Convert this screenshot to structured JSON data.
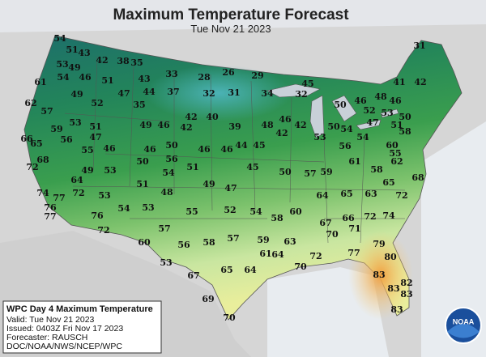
{
  "title": "Maximum Temperature Forecast",
  "subtitle": "Tue Nov 21 2023",
  "info_box": {
    "heading": "WPC Day 4 Maximum Temperature",
    "lines": [
      "Valid: Tue Nov 21 2023",
      "Issued: 0403Z Fri Nov 17 2023",
      "Forecaster: RAUSCH",
      "DOC/NOAA/NWS/NCEP/WPC"
    ]
  },
  "logo": "NOAA",
  "temperatures": [
    54,
    51,
    43,
    42,
    38,
    35,
    31,
    53,
    49,
    33,
    28,
    26,
    29,
    43,
    61,
    54,
    46,
    51,
    41,
    42,
    62,
    57,
    49,
    52,
    47,
    44,
    37,
    32,
    31,
    34,
    32,
    45,
    35,
    42,
    40,
    59,
    53,
    51,
    49,
    46,
    42,
    39,
    48,
    42,
    46,
    42,
    50,
    54,
    50,
    46,
    48,
    46,
    52,
    53,
    47,
    51,
    50,
    58,
    66,
    65,
    56,
    55,
    47,
    46,
    46,
    50,
    46,
    46,
    44,
    45,
    53,
    56,
    54,
    60,
    55,
    68,
    72,
    49,
    53,
    50,
    56,
    51,
    45,
    50,
    57,
    59,
    61,
    58,
    62,
    64,
    51,
    54,
    49,
    47,
    68,
    65,
    74,
    72,
    53,
    48,
    64,
    65,
    63,
    72,
    77,
    76,
    54,
    53,
    55,
    52,
    54,
    58,
    60,
    67,
    66,
    72,
    74,
    77,
    76,
    72,
    57,
    71,
    70,
    79,
    60,
    56,
    58,
    57,
    59,
    63,
    53,
    61,
    64,
    72,
    77,
    80,
    67,
    65,
    64,
    70,
    83,
    82,
    83,
    83,
    69,
    70,
    83
  ]
}
